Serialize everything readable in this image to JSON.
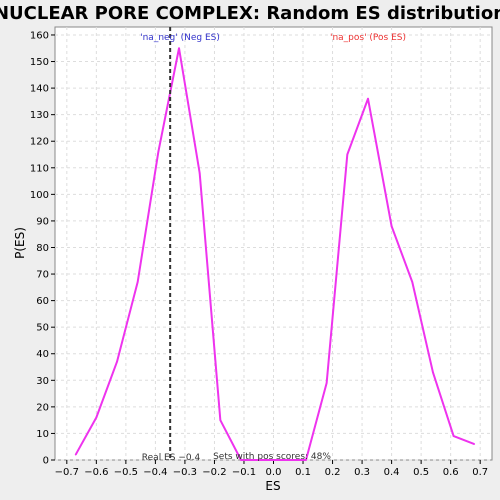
{
  "chart_data": {
    "type": "line",
    "title": "NUCLEAR PORE COMPLEX: Random ES distribution",
    "xlabel": "ES",
    "ylabel": "P(ES)",
    "xlim": [
      -0.74,
      0.74
    ],
    "ylim": [
      0,
      163
    ],
    "x_ticks": [
      -0.7,
      -0.6,
      -0.5,
      -0.4,
      -0.3,
      -0.2,
      -0.1,
      0.0,
      0.1,
      0.2,
      0.3,
      0.4,
      0.5,
      0.6,
      0.7
    ],
    "x_tick_labels": [
      "−0.7",
      "−0.6",
      "−0.5",
      "−0.4",
      "−0.3",
      "−0.2",
      "−0.1",
      "0.0",
      "0.1",
      "0.2",
      "0.3",
      "0.4",
      "0.5",
      "0.6",
      "0.7"
    ],
    "y_ticks": [
      0,
      10,
      20,
      30,
      40,
      50,
      60,
      70,
      80,
      90,
      100,
      110,
      120,
      130,
      140,
      150,
      160
    ],
    "grid": true,
    "series": [
      {
        "color": "#ee33ee",
        "x": [
          -0.67,
          -0.6,
          -0.53,
          -0.46,
          -0.39,
          -0.32,
          -0.25,
          -0.18,
          -0.11,
          -0.04,
          0.03,
          0.11,
          0.18,
          0.25,
          0.32,
          0.4,
          0.47,
          0.54,
          0.61,
          0.68
        ],
        "y": [
          2,
          16,
          37,
          67,
          116,
          155,
          108,
          15,
          0,
          0,
          0,
          0,
          29,
          115,
          136,
          88,
          67,
          33,
          9,
          6
        ]
      }
    ],
    "vline": {
      "x": -0.35,
      "color": "#333333"
    },
    "annotations": {
      "neg_label": "'na_neg' (Neg ES)",
      "neg_color": "#3333cc",
      "pos_label": "'na_pos' (Pos ES)",
      "pos_color": "#ee3333",
      "real_es": "Real ES −0.4",
      "sets_pos": "Sets with pos scores: 48%"
    }
  }
}
